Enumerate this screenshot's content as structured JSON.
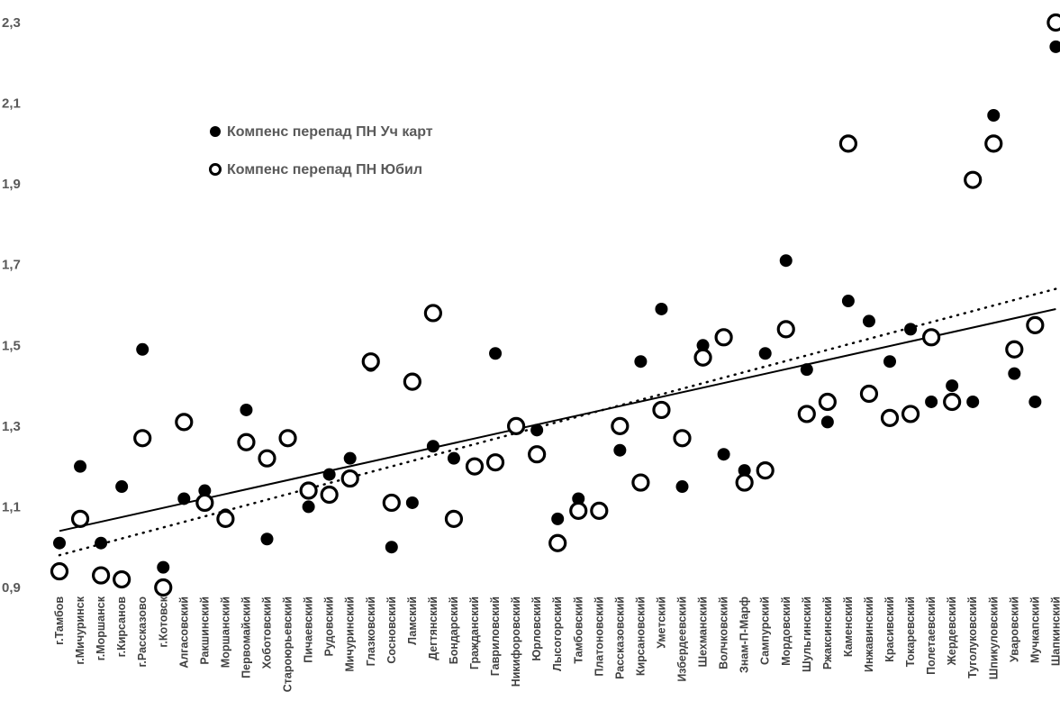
{
  "chart_data": {
    "type": "scatter",
    "title": "",
    "xlabel": "",
    "ylabel": "",
    "ylim": [
      0.9,
      2.3
    ],
    "yticks": [
      "0,9",
      "1,1",
      "1,3",
      "1,5",
      "1,7",
      "1,9",
      "2,1",
      "2,3"
    ],
    "grid": false,
    "legend_position": "top-left",
    "categories": [
      "г.Тамбов",
      "г.Мичуринск",
      "г.Моршанск",
      "г.Кирсанов",
      "г.Рассказово",
      "г.Котовск",
      "Алгасовский",
      "Ракшинский",
      "Моршанский",
      "Первомайский",
      "Хоботовский",
      "Староюрьевский",
      "Пичаевский",
      "Рудовский",
      "Мичуринский",
      "Глазковский",
      "Сосновский",
      "Ламский",
      "Дегтянский",
      "Бондарский",
      "Гражданский",
      "Гавриловский",
      "Никифоровский",
      "Юрловский",
      "Лысогорский",
      "Тамбовский",
      "Платоновский",
      "Рассказовский",
      "Кирсановский",
      "Уметский",
      "Избердеевский",
      "Шехманский",
      "Волчковский",
      "Знам-П-Марф",
      "Сампурский",
      "Мордовский",
      "Шульгинский",
      "Ржаксинский",
      "Каменский",
      "Инжавинский",
      "Красивский",
      "Токаревский",
      "Полетаевский",
      "Жердевский",
      "Туголуковский",
      "Шпикуловский",
      "Уваровский",
      "Мучкапский",
      "Шапкинский"
    ],
    "series": [
      {
        "name": "Компенс перепад ПН Уч карт",
        "marker": "filled-circle",
        "color": "#000000",
        "values": [
          1.01,
          1.2,
          1.01,
          1.15,
          1.49,
          0.95,
          1.12,
          1.14,
          1.08,
          1.34,
          1.02,
          1.27,
          1.1,
          1.18,
          1.22,
          1.45,
          1.0,
          1.11,
          1.25,
          1.22,
          1.2,
          1.48,
          1.3,
          1.29,
          1.07,
          1.12,
          1.09,
          1.24,
          1.46,
          1.59,
          1.15,
          1.5,
          1.23,
          1.19,
          1.48,
          1.71,
          1.44,
          1.31,
          1.61,
          1.56,
          1.46,
          1.54,
          1.36,
          1.4,
          1.36,
          2.07,
          1.43,
          1.36,
          2.24
        ]
      },
      {
        "name": "Компенс перепад ПН Юбил",
        "marker": "open-circle",
        "color": "#000000",
        "values": [
          0.94,
          1.07,
          0.93,
          0.92,
          1.27,
          0.9,
          1.31,
          1.11,
          1.07,
          1.26,
          1.22,
          1.27,
          1.14,
          1.13,
          1.17,
          1.46,
          1.11,
          1.41,
          1.58,
          1.07,
          1.2,
          1.21,
          1.3,
          1.23,
          1.01,
          1.09,
          1.09,
          1.3,
          1.16,
          1.34,
          1.27,
          1.47,
          1.52,
          1.16,
          1.19,
          1.54,
          1.33,
          1.36,
          2.0,
          1.38,
          1.32,
          1.33,
          1.52,
          1.36,
          1.91,
          2.0,
          1.49,
          1.55,
          2.3
        ]
      }
    ],
    "trendlines": [
      {
        "series": "Компенс перепад ПН Уч карт",
        "style": "solid",
        "start": 1.04,
        "end": 1.59
      },
      {
        "series": "Компенс перепад ПН Юбил",
        "style": "dotted",
        "start": 0.98,
        "end": 1.64
      }
    ]
  }
}
